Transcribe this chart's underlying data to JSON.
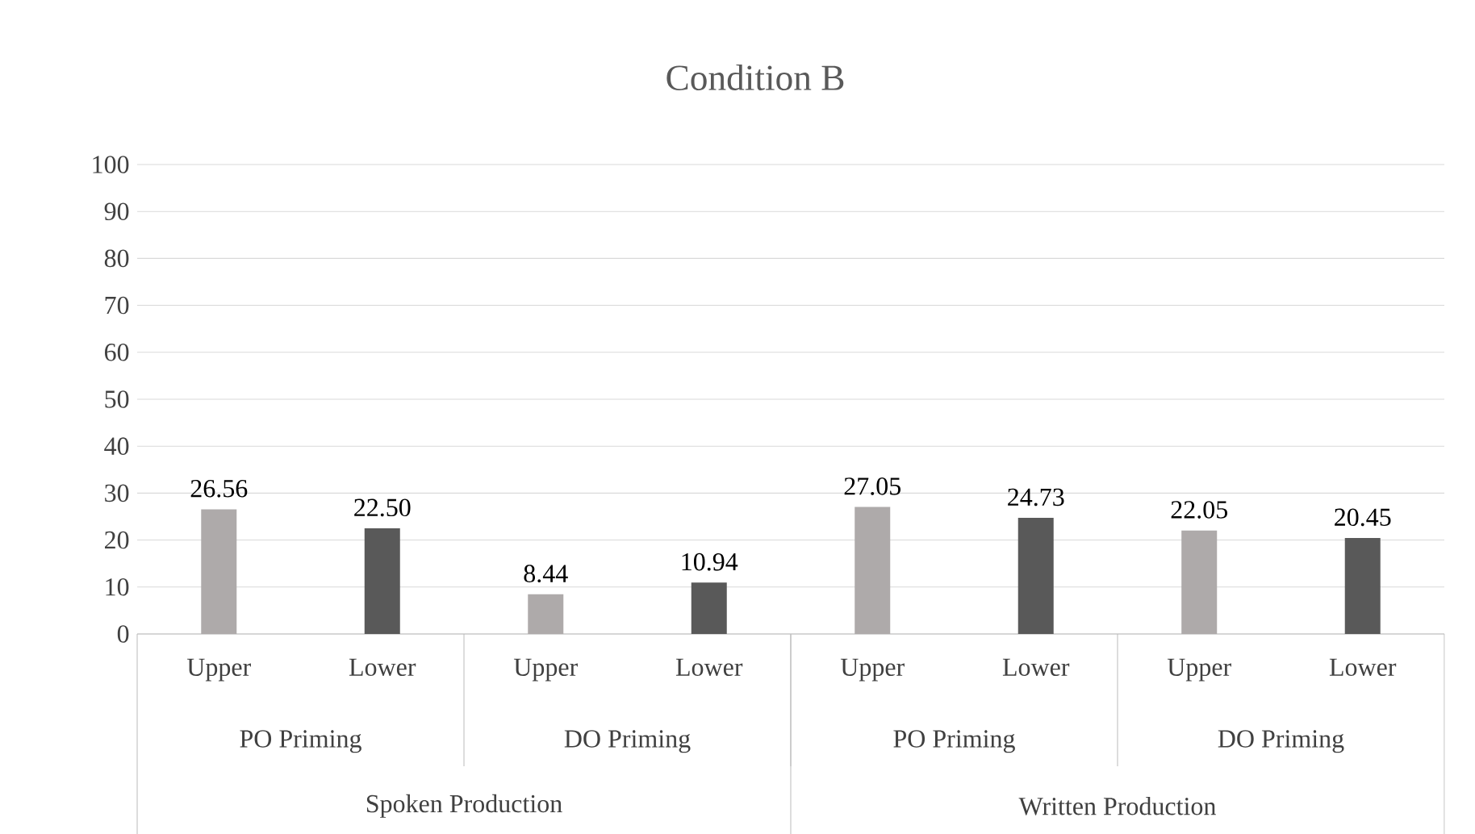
{
  "chart_data": {
    "type": "bar",
    "title": "Condition B",
    "categories": [
      "Upper",
      "Lower",
      "Upper",
      "Lower",
      "Upper",
      "Lower",
      "Upper",
      "Lower"
    ],
    "values": [
      26.56,
      22.5,
      8.44,
      10.94,
      27.05,
      24.73,
      22.05,
      20.45
    ],
    "value_labels": [
      "26.56",
      "22.50",
      "8.44",
      "10.94",
      "27.05",
      "24.73",
      "22.05",
      "20.45"
    ],
    "colors": [
      "#aeaaaa",
      "#595959",
      "#aeaaaa",
      "#595959",
      "#aeaaaa",
      "#595959",
      "#aeaaaa",
      "#595959"
    ],
    "annotations": [
      "PO Priming",
      "DO Priming",
      "PO Priming",
      "DO Priming",
      "Spoken Production",
      "Written Production"
    ],
    "ylim": [
      0,
      100
    ],
    "yticks": [
      0,
      10,
      20,
      30,
      40,
      50,
      60,
      70,
      80,
      90,
      100
    ],
    "grid": "y"
  }
}
